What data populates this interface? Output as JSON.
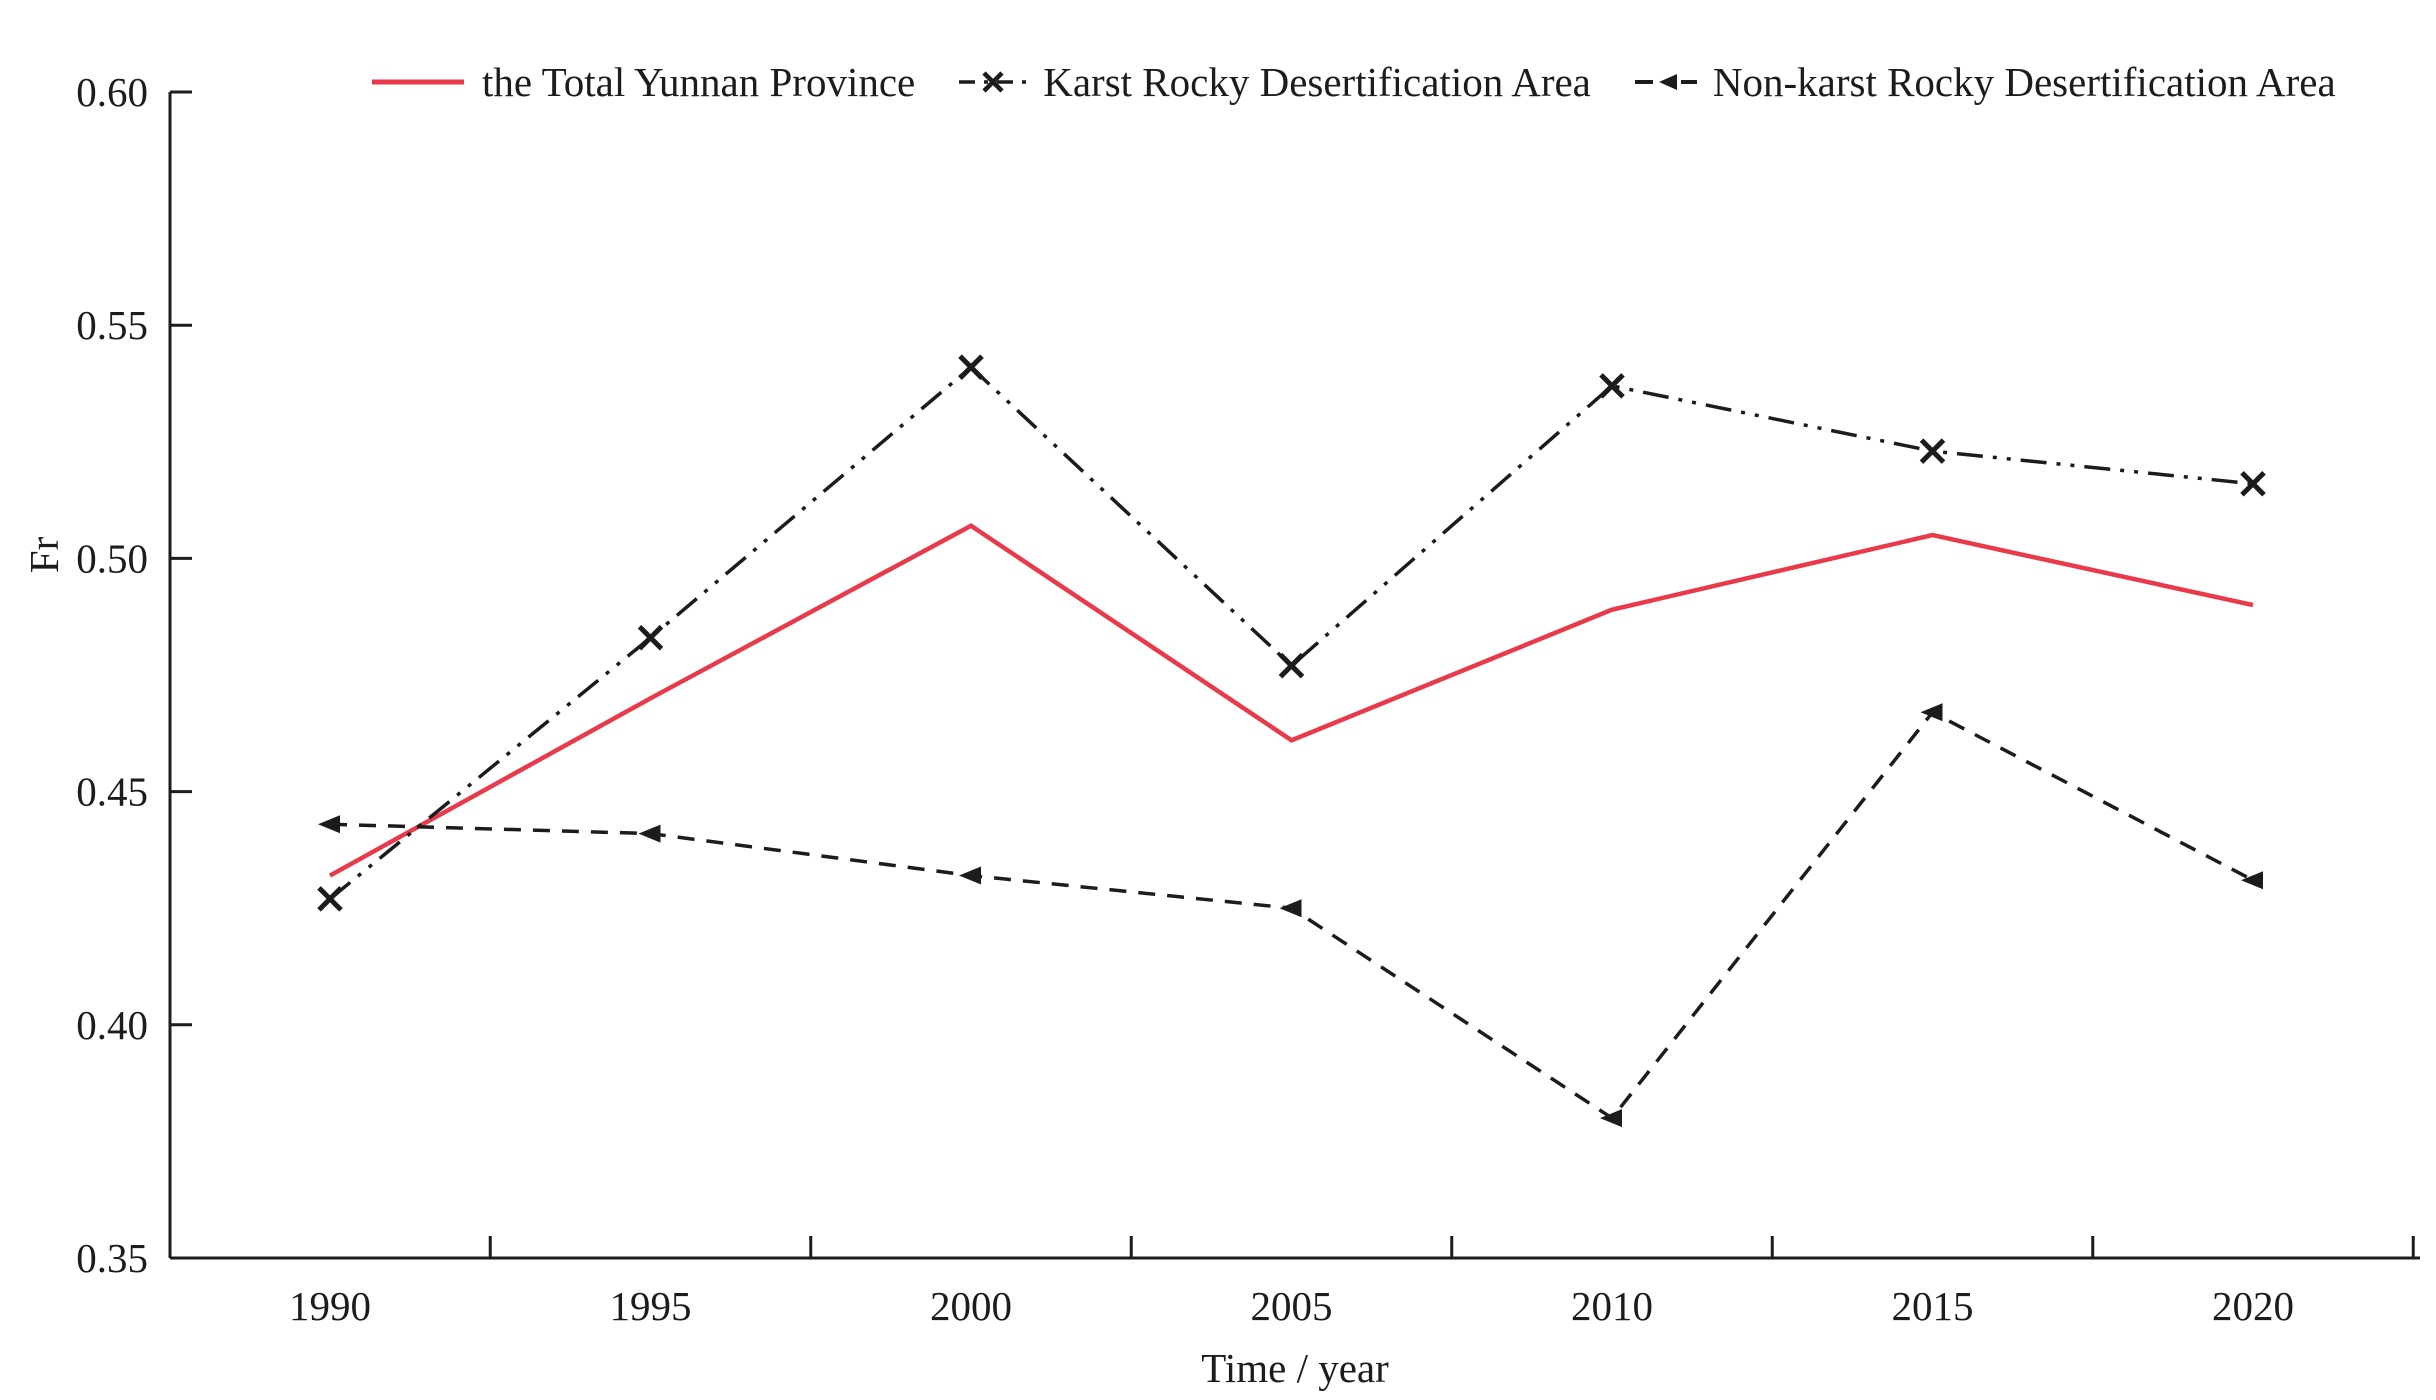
{
  "chart_data": {
    "type": "line",
    "title": "",
    "xlabel": "Time / year",
    "ylabel": "Fr",
    "x": [
      1990,
      1995,
      2000,
      2005,
      2010,
      2015,
      2020
    ],
    "x_tick_labels": [
      "1990",
      "1995",
      "2000",
      "2005",
      "2010",
      "2015",
      "2020"
    ],
    "y_ticks": [
      0.35,
      0.4,
      0.45,
      0.5,
      0.55,
      0.6
    ],
    "y_tick_labels": [
      "0.35",
      "0.40",
      "0.45",
      "0.50",
      "0.55",
      "0.60"
    ],
    "xlim_years": [
      1987.5,
      2022.5
    ],
    "ylim": [
      0.35,
      0.6
    ],
    "grid": false,
    "legend_position": "top",
    "axis_color": "#1c1c1c",
    "series": [
      {
        "name": "the Total Yunnan Province",
        "color": "#e83a4b",
        "line_style": "solid",
        "marker": "none",
        "values": [
          0.432,
          0.47,
          0.507,
          0.461,
          0.489,
          0.505,
          0.49
        ]
      },
      {
        "name": "Karst Rocky Desertification Area",
        "color": "#1c1c1c",
        "line_style": "dash-dot-dot",
        "marker": "x",
        "values": [
          0.427,
          0.483,
          0.541,
          0.477,
          0.537,
          0.523,
          0.516
        ]
      },
      {
        "name": "Non-karst Rocky Desertification Area",
        "color": "#1c1c1c",
        "line_style": "dashed",
        "marker": "left-triangle",
        "values": [
          0.443,
          0.441,
          0.432,
          0.425,
          0.38,
          0.467,
          0.431
        ]
      }
    ]
  }
}
